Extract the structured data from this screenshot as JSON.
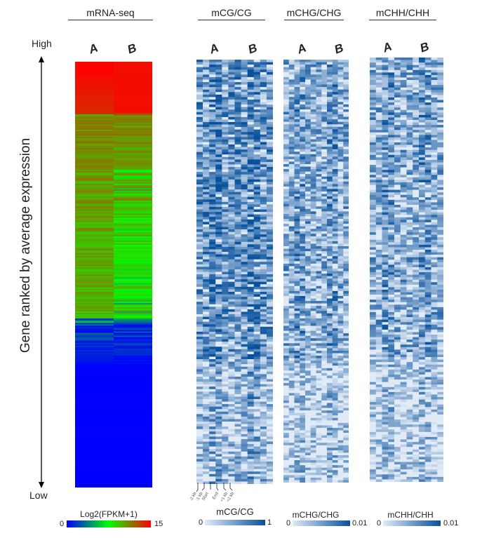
{
  "labels": {
    "high": "High",
    "low": "Low",
    "ylabel": "Gene ranked by average expression"
  },
  "chart_data": [
    {
      "type": "heatmap",
      "title": "mRNA-seq",
      "columns": [
        "A",
        "B"
      ],
      "rows_sorted": "descending average expression",
      "colorbar": {
        "label": "Log2(FPKM+1)",
        "min": "0",
        "max": "15",
        "colors": [
          "#0000ff",
          "#00ff00",
          "#808000",
          "#ff0000"
        ]
      }
    },
    {
      "type": "heatmap",
      "title": "mCG/CG",
      "columns": [
        "A",
        "B"
      ],
      "bins": [
        "-2 kb",
        "-1 kb",
        "Start",
        "End",
        "+1 kb",
        "+2 kb"
      ],
      "colorbar": {
        "label": "mCG/CG",
        "min": "0",
        "max": "1",
        "colors": [
          "#e1ebf7",
          "#08519c"
        ]
      }
    },
    {
      "type": "heatmap",
      "title": "mCHG/CHG",
      "columns": [
        "A",
        "B"
      ],
      "colorbar": {
        "label": "mCHG/CHG",
        "min": "0",
        "max": "0.01",
        "colors": [
          "#e1ebf7",
          "#08519c"
        ]
      }
    },
    {
      "type": "heatmap",
      "title": "mCHH/CHH",
      "columns": [
        "A",
        "B"
      ],
      "colorbar": {
        "label": "mCHH/CHH",
        "min": "0",
        "max": "0.01",
        "colors": [
          "#e1ebf7",
          "#08519c"
        ]
      }
    }
  ]
}
